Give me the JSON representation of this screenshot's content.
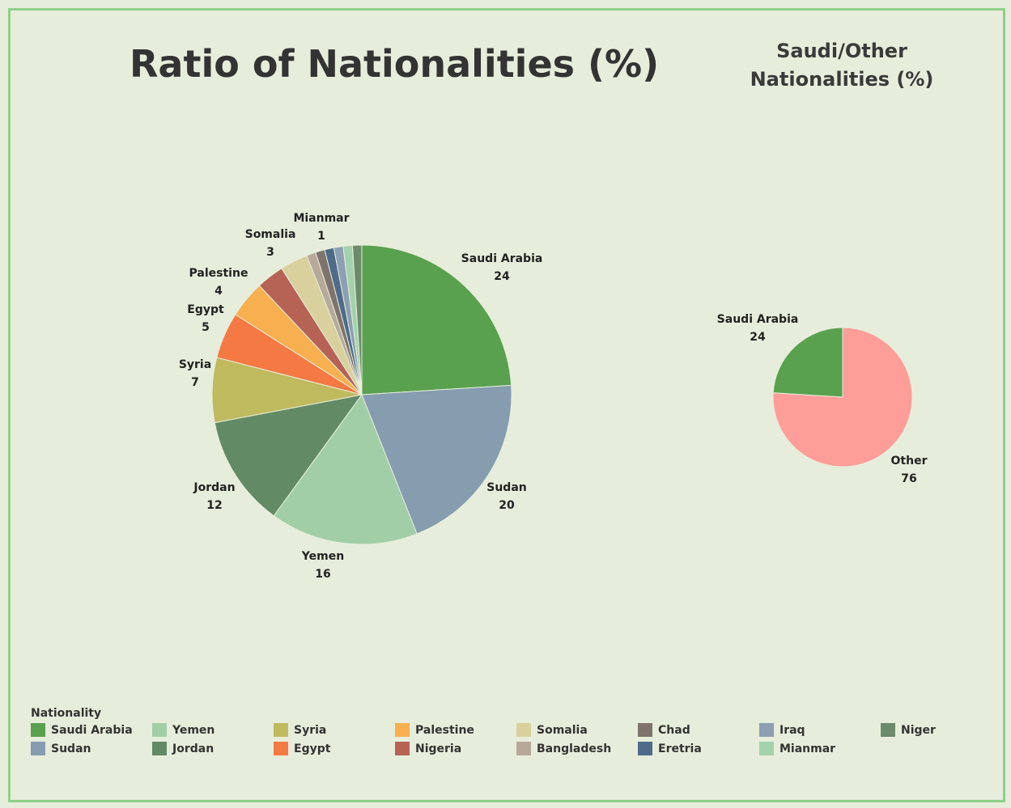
{
  "colors": {
    "Saudi Arabia": "#59a14f",
    "Sudan": "#869caf",
    "Yemen": "#a2cea7",
    "Jordan": "#628a65",
    "Syria": "#bfba5e",
    "Egypt": "#f47942",
    "Palestine": "#f8af4f",
    "Nigeria": "#b66255",
    "Somalia": "#d8d19d",
    "Bangladesh": "#b7a999",
    "Chad": "#7e736d",
    "Eretria": "#4e6b89",
    "Iraq": "#8c9fb3",
    "Mianmar": "#a3d2ac",
    "Niger": "#6b8c6b",
    "Other": "#ff9d98"
  },
  "chart_data": [
    {
      "type": "pie",
      "title": "Ratio of Nationalities (%)",
      "slices": [
        {
          "label": "Saudi Arabia",
          "value": 24
        },
        {
          "label": "Sudan",
          "value": 20
        },
        {
          "label": "Yemen",
          "value": 16
        },
        {
          "label": "Jordan",
          "value": 12
        },
        {
          "label": "Syria",
          "value": 7
        },
        {
          "label": "Egypt",
          "value": 5
        },
        {
          "label": "Palestine",
          "value": 4
        },
        {
          "label": "Nigeria",
          "value": 3
        },
        {
          "label": "Somalia",
          "value": 3
        },
        {
          "label": "Bangladesh",
          "value": 1
        },
        {
          "label": "Chad",
          "value": 1
        },
        {
          "label": "Eretria",
          "value": 1
        },
        {
          "label": "Iraq",
          "value": 1
        },
        {
          "label": "Mianmar",
          "value": 1
        },
        {
          "label": "Niger",
          "value": 1
        }
      ],
      "labeled_slices": [
        "Saudi Arabia",
        "Sudan",
        "Yemen",
        "Jordan",
        "Syria",
        "Egypt",
        "Palestine",
        "Somalia",
        "Mianmar"
      ]
    },
    {
      "type": "pie",
      "title": "Saudi/Other Nationalities (%)",
      "slices": [
        {
          "label": "Other",
          "value": 76
        },
        {
          "label": "Saudi Arabia",
          "value": 24
        }
      ],
      "labeled_slices": [
        "Other",
        "Saudi Arabia"
      ]
    }
  ],
  "legend": {
    "title": "Nationality",
    "items": [
      "Saudi Arabia",
      "Yemen",
      "Syria",
      "Palestine",
      "Somalia",
      "Chad",
      "Iraq",
      "Niger",
      "Sudan",
      "Jordan",
      "Egypt",
      "Nigeria",
      "Bangladesh",
      "Eretria",
      "Mianmar"
    ]
  }
}
